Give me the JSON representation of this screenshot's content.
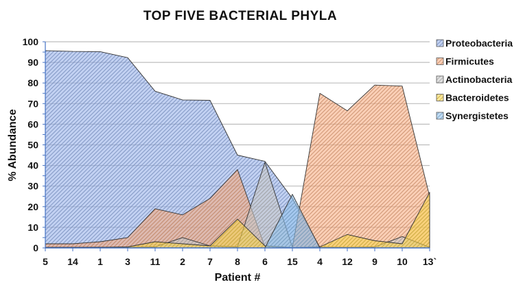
{
  "chart_data": {
    "type": "area",
    "stacked": false,
    "title": "TOP FIVE BACTERIAL PHYLA",
    "xlabel": "Patient #",
    "ylabel": "% Abundance",
    "ylim": [
      0,
      100
    ],
    "yticks": [
      0,
      10,
      20,
      30,
      40,
      50,
      60,
      70,
      80,
      90,
      100
    ],
    "grid": true,
    "legend_position": "right",
    "categories": [
      "5",
      "14",
      "1",
      "3",
      "11",
      "2",
      "7",
      "8",
      "6",
      "15",
      "4",
      "12",
      "9",
      "10",
      "13`"
    ],
    "series": [
      {
        "name": "Proteobacteria",
        "color": "#8fabe6",
        "values": [
          95.7,
          95.3,
          95.2,
          92.3,
          76,
          71.8,
          71.6,
          45,
          42,
          24,
          0.5,
          0.3,
          0.3,
          0.3,
          0.3
        ]
      },
      {
        "name": "Firmicutes",
        "color": "#f5a77a",
        "values": [
          2,
          2,
          3,
          5,
          19,
          16,
          24,
          38,
          0.5,
          0.2,
          75,
          66.5,
          79,
          78.5,
          25
        ]
      },
      {
        "name": "Actinobacteria",
        "color": "#c8c8c8",
        "values": [
          0.3,
          0.3,
          0.3,
          0.3,
          0.5,
          5,
          1,
          0.5,
          41.5,
          0.2,
          0.3,
          0.3,
          0.5,
          5.5,
          0.3
        ]
      },
      {
        "name": "Bacteroidetes",
        "color": "#f8d34a",
        "values": [
          0.2,
          0.2,
          0.3,
          0.5,
          3,
          2,
          1,
          14,
          1,
          0.2,
          0.5,
          6.5,
          3.5,
          2,
          27
        ]
      },
      {
        "name": "Synergistetes",
        "color": "#8ec0ec",
        "values": [
          0,
          0,
          0,
          0,
          0,
          0,
          0,
          0,
          0,
          26,
          0,
          0,
          0,
          0,
          0
        ]
      }
    ]
  },
  "legend": {
    "items": [
      {
        "label": "Proteobacteria"
      },
      {
        "label": "Firmicutes"
      },
      {
        "label": "Actinobacteria"
      },
      {
        "label": "Bacteroidetes"
      },
      {
        "label": "Synergistetes"
      }
    ]
  }
}
